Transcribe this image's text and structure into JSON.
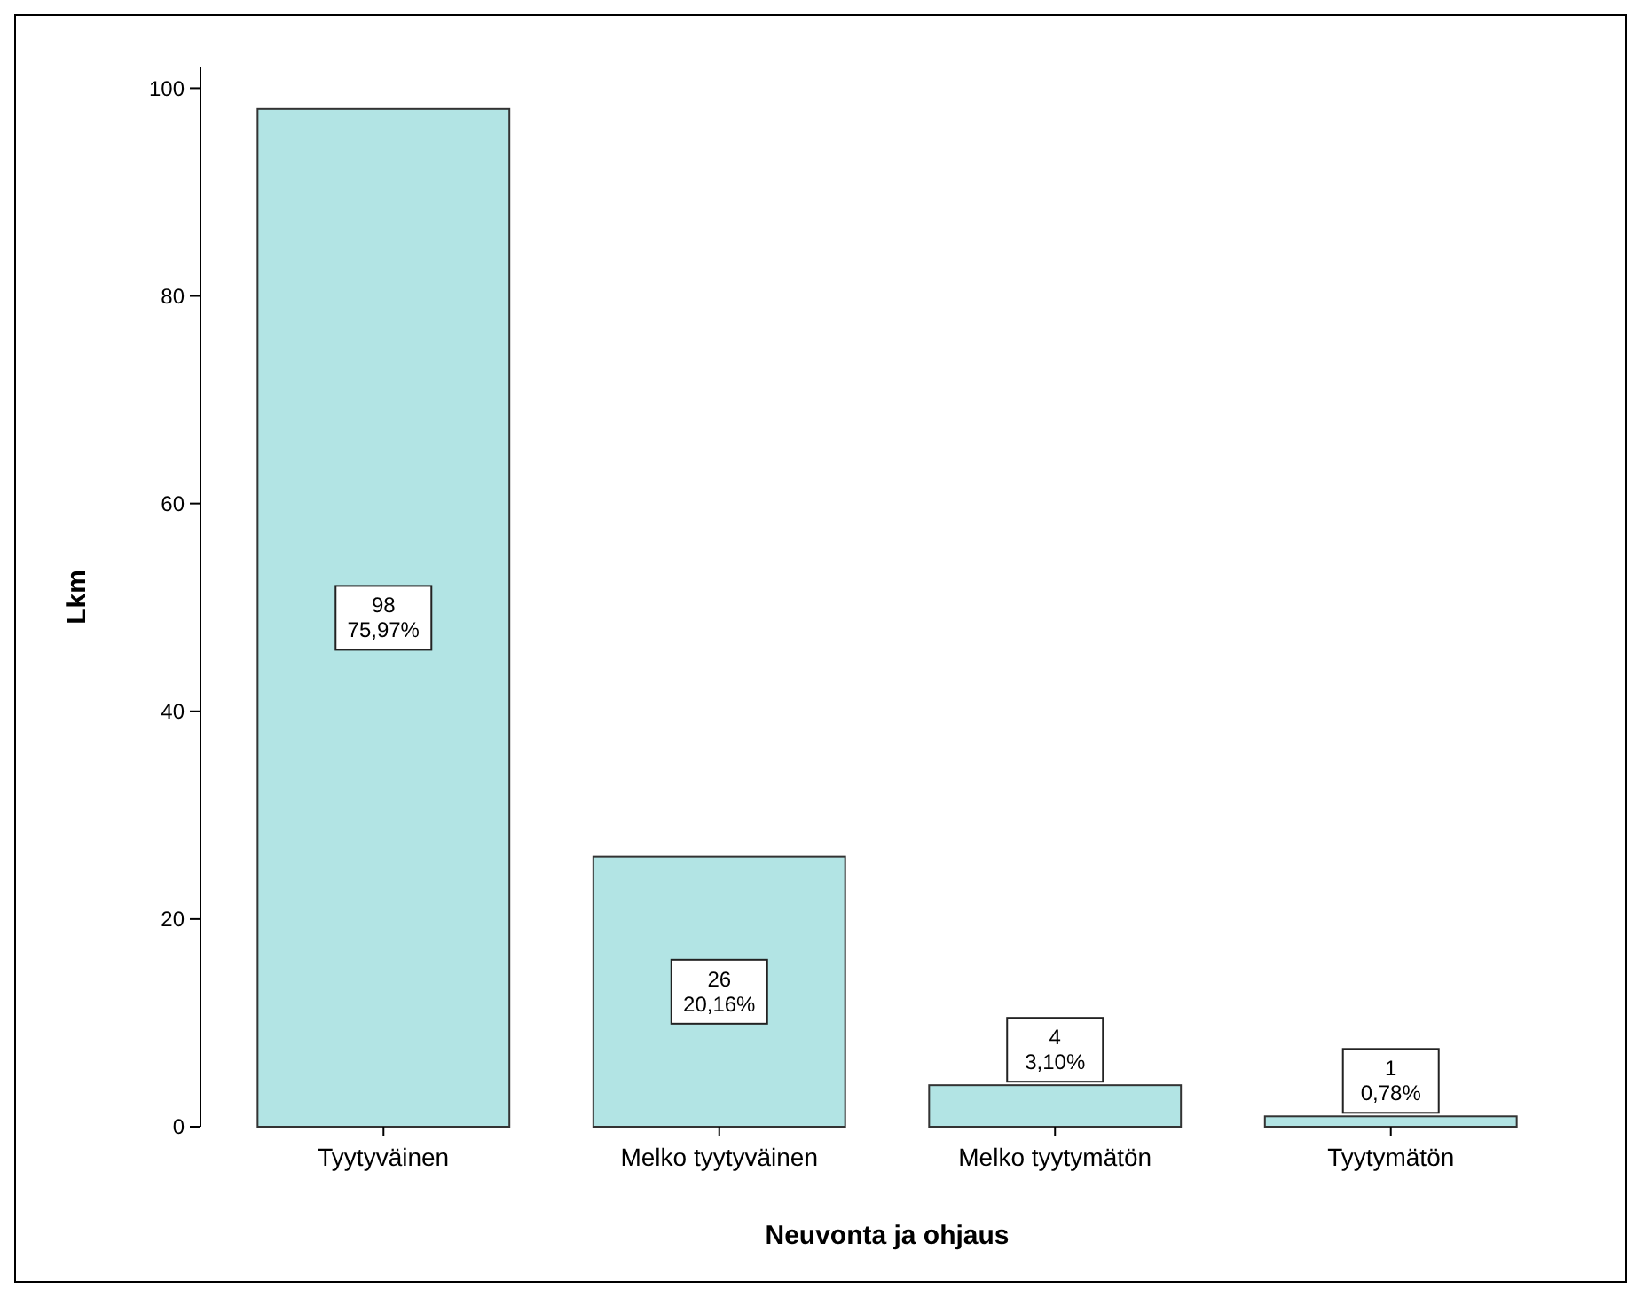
{
  "chart_data": {
    "type": "bar",
    "xlabel": "Neuvonta ja ohjaus",
    "ylabel": "Lkm",
    "categories": [
      "Tyytyväinen",
      "Melko tyytyväinen",
      "Melko tyytymätön",
      "Tyytymätön"
    ],
    "values": [
      98,
      26,
      4,
      1
    ],
    "color": "#b2e4e4",
    "value_labels": [
      "98\n75,97%",
      "26\n20,16%",
      "4\n3,10%",
      "1\n0,78%"
    ],
    "ylim": [
      0,
      102
    ],
    "yticks": [
      0,
      20,
      40,
      60,
      80,
      100
    ],
    "grid": false
  }
}
